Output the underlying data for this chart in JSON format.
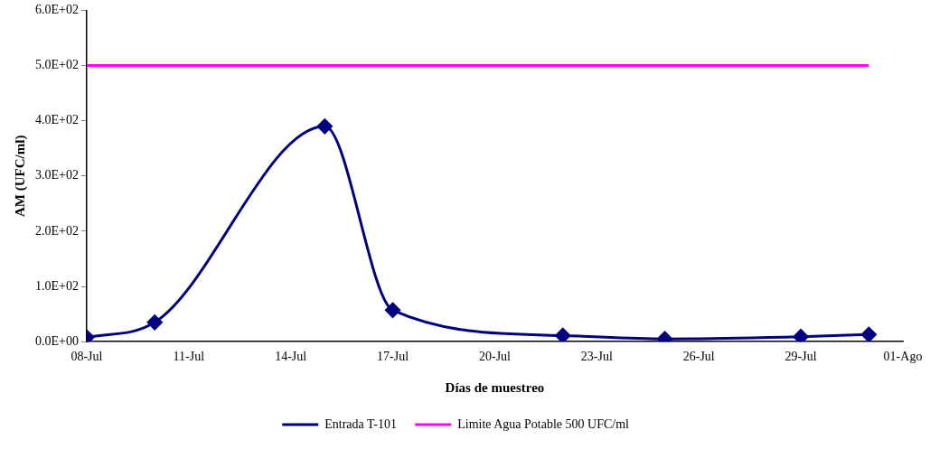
{
  "chart_data": {
    "type": "line",
    "xlabel": "Días de muestreo",
    "ylabel": "AM (UFC/ml)",
    "xlim": [
      "--07-08",
      "--08-01"
    ],
    "xticks": [
      {
        "value": "--07-08",
        "label": "08-Jul"
      },
      {
        "value": "--07-11",
        "label": "11-Jul"
      },
      {
        "value": "--07-14",
        "label": "14-Jul"
      },
      {
        "value": "--07-17",
        "label": "17-Jul"
      },
      {
        "value": "--07-20",
        "label": "20-Jul"
      },
      {
        "value": "--07-23",
        "label": "23-Jul"
      },
      {
        "value": "--07-26",
        "label": "26-Jul"
      },
      {
        "value": "--07-29",
        "label": "29-Jul"
      },
      {
        "value": "--08-01",
        "label": "01-Ago"
      }
    ],
    "ylim": [
      0,
      600
    ],
    "yticks": [
      {
        "value": 0,
        "label": "0.0E+00"
      },
      {
        "value": 100,
        "label": "1.0E+02"
      },
      {
        "value": 200,
        "label": "2.0E+02"
      },
      {
        "value": 300,
        "label": "3.0E+02"
      },
      {
        "value": 400,
        "label": "4.0E+02"
      },
      {
        "value": 500,
        "label": "5.0E+02"
      },
      {
        "value": 600,
        "label": "6.0E+02"
      }
    ],
    "grid": false,
    "legend": "bottom",
    "series": [
      {
        "name": "Entrada T-101",
        "color": "#000080",
        "marker": "diamond",
        "x": [
          "--07-08",
          "--07-10",
          "--07-15",
          "--07-17",
          "--07-22",
          "--07-25",
          "--07-29",
          "--07-31"
        ],
        "values": [
          8,
          35,
          390,
          57,
          11,
          5,
          9,
          13
        ]
      },
      {
        "name": "Limite Agua Potable 500 UFC/ml",
        "color": "#ff00ff",
        "marker": "none",
        "x": [
          "--07-08",
          "--07-31"
        ],
        "values": [
          500,
          500
        ]
      }
    ]
  }
}
